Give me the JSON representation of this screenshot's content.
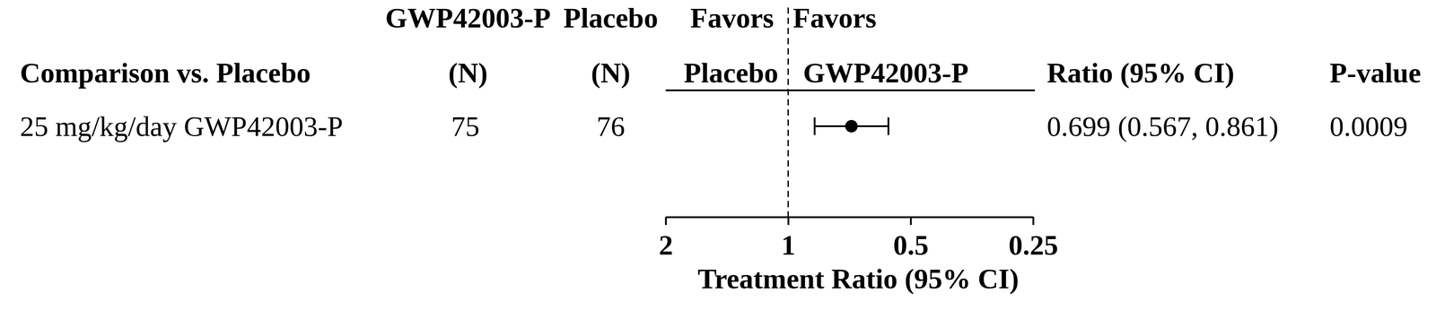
{
  "chart_data": {
    "type": "forest",
    "headers": {
      "label": "Comparison vs. Placebo",
      "treatment": [
        "GWP42003-P",
        "(N)"
      ],
      "control": [
        "Placebo",
        "(N)"
      ],
      "favors_left": [
        "Favors",
        "Placebo"
      ],
      "favors_right": [
        "Favors",
        "GWP42003-P"
      ],
      "ratio": "Ratio (95% CI)",
      "p_value": "P-value"
    },
    "rows": [
      {
        "label": "25 mg/kg/day GWP42003-P",
        "n_treatment": 75,
        "n_control": 76,
        "ratio": 0.699,
        "ci": [
          0.567,
          0.861
        ],
        "ratio_label": "0.699 (0.567, 0.861)",
        "p_value": 0.0009
      }
    ],
    "x_label": "Treatment Ratio (95% CI)",
    "log": "x",
    "xlim": [
      2,
      0.25
    ],
    "xticks": [
      2,
      1,
      0.5,
      0.25
    ],
    "reference": 1,
    "color": "#000000",
    "marker": "circle",
    "line_style": "dashed"
  }
}
